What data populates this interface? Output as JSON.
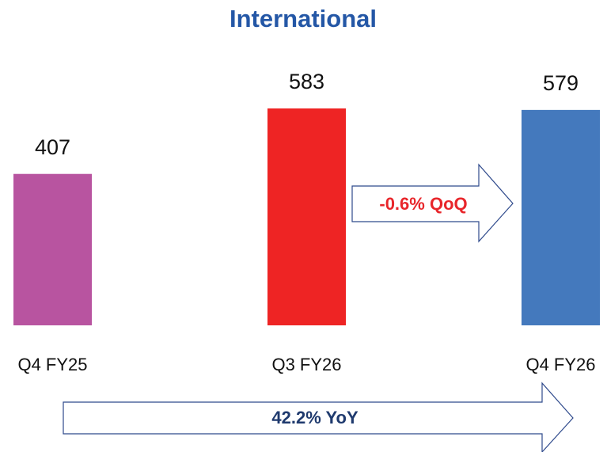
{
  "chart_data": {
    "type": "bar",
    "title": "International",
    "categories": [
      "Q4 FY25",
      "Q3 FY26",
      "Q4 FY26"
    ],
    "values": [
      407,
      583,
      579
    ],
    "colors": [
      "#b854a0",
      "#ee2424",
      "#4479bd"
    ],
    "annotations": [
      "-0.6% QoQ",
      "42.2% YoY"
    ]
  }
}
